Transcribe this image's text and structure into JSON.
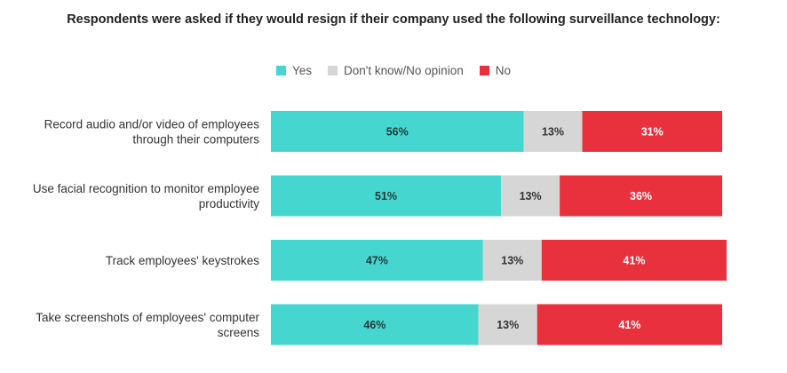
{
  "chart_data": {
    "type": "bar",
    "orientation": "horizontal",
    "stacked": true,
    "title": "Respondents were asked if they would resign if their company used the following surveillance technology:",
    "categories": [
      [
        "Record audio and/or video of employees",
        "through their computers"
      ],
      [
        "Use facial recognition to monitor employee",
        "productivity"
      ],
      [
        "Track employees' keystrokes"
      ],
      [
        "Take screenshots of employees' computer",
        "screens"
      ]
    ],
    "series": [
      {
        "name": "Yes",
        "color": "#45d7cf",
        "label_color": "#1f3a3a",
        "values": [
          56,
          51,
          47,
          46
        ]
      },
      {
        "name": "Don't know/No opinion",
        "color": "#d6d6d6",
        "label_color": "#333333",
        "values": [
          13,
          13,
          13,
          13
        ]
      },
      {
        "name": "No",
        "color": "#e8313c",
        "label_color": "#ffffff",
        "values": [
          31,
          36,
          41,
          41
        ]
      }
    ],
    "value_suffix": "%",
    "grid": false,
    "legend_position": "top"
  }
}
